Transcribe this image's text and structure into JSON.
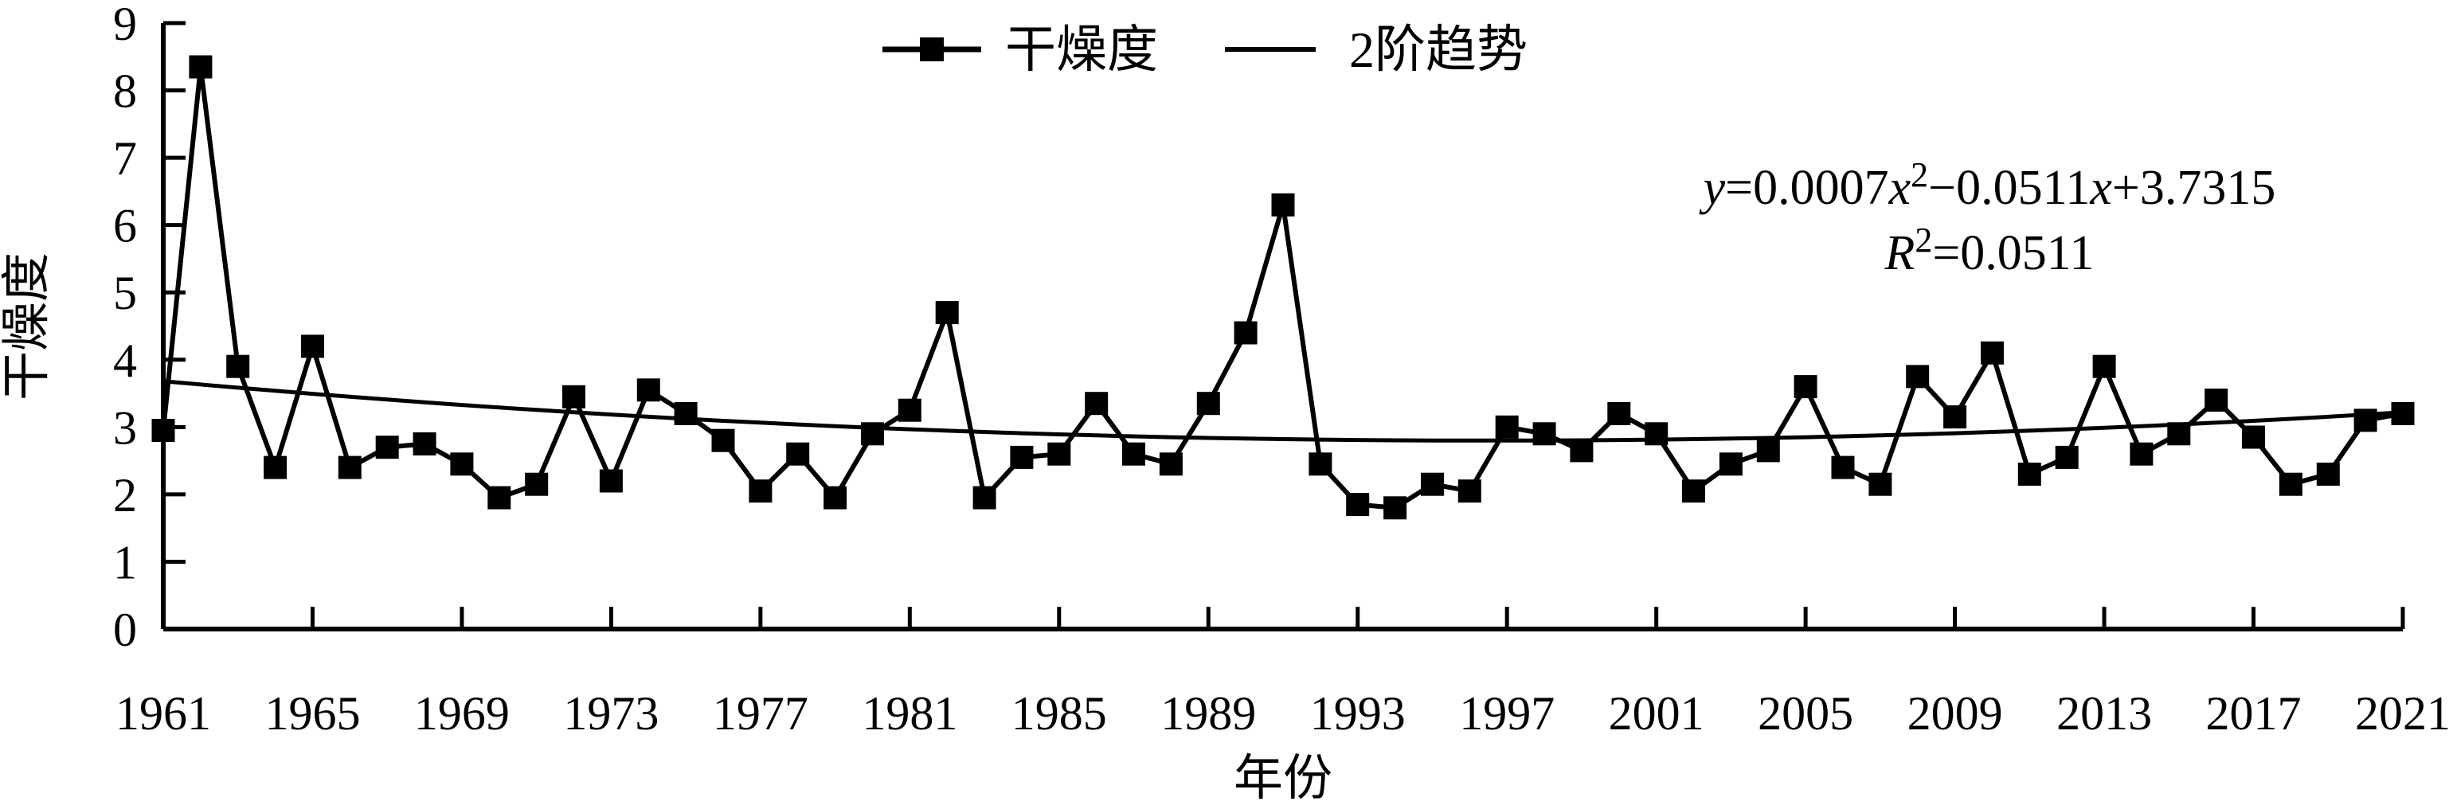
{
  "chart_data": {
    "type": "line",
    "title": "",
    "xlabel": "年份",
    "ylabel": "干燥度",
    "ylim": [
      0,
      9
    ],
    "xlim": [
      1961,
      2021
    ],
    "grid": false,
    "legend_position": "top-center",
    "y_ticks": [
      0,
      1,
      2,
      3,
      4,
      5,
      6,
      7,
      8,
      9
    ],
    "x_ticks": [
      1961,
      1965,
      1969,
      1973,
      1977,
      1981,
      1985,
      1989,
      1993,
      1997,
      2001,
      2005,
      2009,
      2013,
      2017,
      2021
    ],
    "years": [
      1961,
      1962,
      1963,
      1964,
      1965,
      1966,
      1967,
      1968,
      1969,
      1970,
      1971,
      1972,
      1973,
      1974,
      1975,
      1976,
      1977,
      1978,
      1979,
      1980,
      1981,
      1982,
      1983,
      1984,
      1985,
      1986,
      1987,
      1988,
      1989,
      1990,
      1991,
      1992,
      1993,
      1994,
      1995,
      1996,
      1997,
      1998,
      1999,
      2000,
      2001,
      2002,
      2003,
      2004,
      2005,
      2006,
      2007,
      2008,
      2009,
      2010,
      2011,
      2012,
      2013,
      2014,
      2015,
      2016,
      2017,
      2018,
      2019,
      2020,
      2021
    ],
    "series": [
      {
        "name": "干燥度",
        "type": "line",
        "marker": "square",
        "color": "#000000",
        "values": [
          2.95,
          8.35,
          3.9,
          2.4,
          4.2,
          2.4,
          2.7,
          2.75,
          2.45,
          1.95,
          2.15,
          3.45,
          2.2,
          3.55,
          3.2,
          2.8,
          2.05,
          2.6,
          1.95,
          2.9,
          3.25,
          4.7,
          1.95,
          2.55,
          2.6,
          3.35,
          2.6,
          2.45,
          3.35,
          4.4,
          6.3,
          2.45,
          1.85,
          1.8,
          2.15,
          2.05,
          3.0,
          2.9,
          2.65,
          3.2,
          2.9,
          2.05,
          2.45,
          2.65,
          3.6,
          2.4,
          2.15,
          3.75,
          3.15,
          4.1,
          2.3,
          2.55,
          3.9,
          2.6,
          2.9,
          3.4,
          2.85,
          2.15,
          2.3,
          3.1,
          3.2
        ]
      },
      {
        "name": "2阶趋势",
        "type": "quadratic-trend",
        "marker": "none",
        "color": "#000000",
        "coefficients": {
          "a": 0.0007,
          "b": -0.0511,
          "c": 3.7315
        },
        "x_index_range": [
          1,
          61
        ]
      }
    ],
    "annotations": [
      "y=0.0007x²−0.0511x+3.7315",
      "R²=0.0511"
    ]
  },
  "legend": {
    "items": [
      {
        "label": "干燥度",
        "symbol": "line-with-square-marker"
      },
      {
        "label": "2阶趋势",
        "symbol": "plain-line"
      }
    ]
  },
  "equation": {
    "line1": {
      "y": "y",
      "eq1": "=0.0007",
      "x1": "x",
      "sup1": "2",
      "mid": "−0.0511",
      "x2": "x",
      "tail": "+3.7315"
    },
    "line2": {
      "R": "R",
      "sup": "2",
      "rest": "=0.0511"
    }
  },
  "colors": {
    "foreground": "#000000",
    "background": "#ffffff"
  }
}
